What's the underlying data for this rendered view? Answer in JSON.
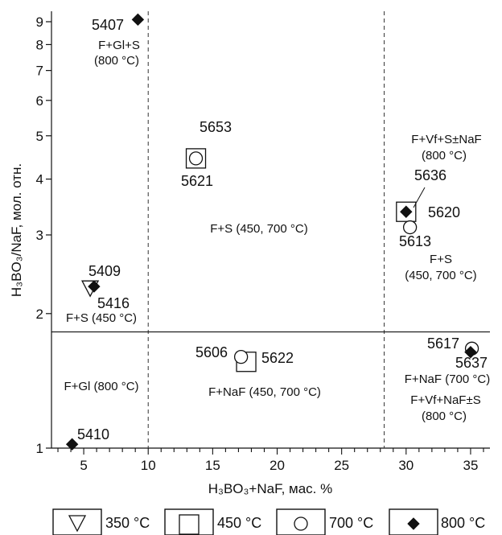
{
  "chart_data": {
    "type": "scatter",
    "title": "",
    "xlabel": "H₃BO₃+NaF, мас. %",
    "ylabel": "H₃BO₃/NaF, мол. отн.",
    "xlim": [
      2.5,
      36.5
    ],
    "ylim": [
      1,
      9.8
    ],
    "yscale": "log",
    "grid": false,
    "x_ticks": [
      5,
      10,
      15,
      20,
      25,
      30,
      35
    ],
    "y_ticks": [
      1,
      2,
      3,
      4,
      5,
      6,
      7,
      8,
      9
    ],
    "guides": {
      "vertical_dashed_x": [
        10,
        28.3
      ],
      "horizontal_solid_y": 1.82
    },
    "points": [
      {
        "id": "5407",
        "x": 9.2,
        "y": 9.1,
        "marker": "diamond"
      },
      {
        "id": "5653",
        "x": 13.7,
        "y": 4.45,
        "marker": "square"
      },
      {
        "id": "5621",
        "x": 13.7,
        "y": 4.45,
        "marker": "circle"
      },
      {
        "id": "5409",
        "x": 5.8,
        "y": 2.3,
        "marker": "diamond"
      },
      {
        "id": "5416",
        "x": 5.5,
        "y": 2.28,
        "marker": "triangle"
      },
      {
        "id": "5636",
        "x": 30.0,
        "y": 3.38,
        "marker": "diamond"
      },
      {
        "id": "5620",
        "x": 30.0,
        "y": 3.38,
        "marker": "square"
      },
      {
        "id": "5613",
        "x": 30.3,
        "y": 3.12,
        "marker": "circle"
      },
      {
        "id": "5606",
        "x": 17.2,
        "y": 1.6,
        "marker": "circle"
      },
      {
        "id": "5622",
        "x": 17.6,
        "y": 1.56,
        "marker": "square"
      },
      {
        "id": "5617",
        "x": 35.1,
        "y": 1.67,
        "marker": "circle"
      },
      {
        "id": "5637",
        "x": 35.0,
        "y": 1.64,
        "marker": "diamond"
      },
      {
        "id": "5410",
        "x": 4.1,
        "y": 1.02,
        "marker": "diamond"
      }
    ],
    "legend": [
      {
        "marker": "triangle",
        "label": "350 °C"
      },
      {
        "marker": "square",
        "label": "450 °C"
      },
      {
        "marker": "circle",
        "label": "700 °C"
      },
      {
        "marker": "diamond",
        "label": "800 °C"
      }
    ],
    "legend_position": "bottom",
    "annotations": {
      "F+Gl+S": "F+Gl+S",
      "T800": "(800 °C)",
      "F+S_450": "F+S (450 °C)",
      "F+Gl_800": "F+Gl (800 °C)",
      "F+S_450_700": "F+S (450, 700 °C)",
      "F+NaF_450_700": "F+NaF (450, 700 °C)",
      "F+Vf+S±NaF": "F+Vf+S±NaF",
      "F+S": "F+S",
      "T450_700": "(450, 700 °C)",
      "F+NaF_700": "F+NaF (700 °C)",
      "F+Vf+NaF±S": "F+Vf+NaF±S"
    }
  }
}
